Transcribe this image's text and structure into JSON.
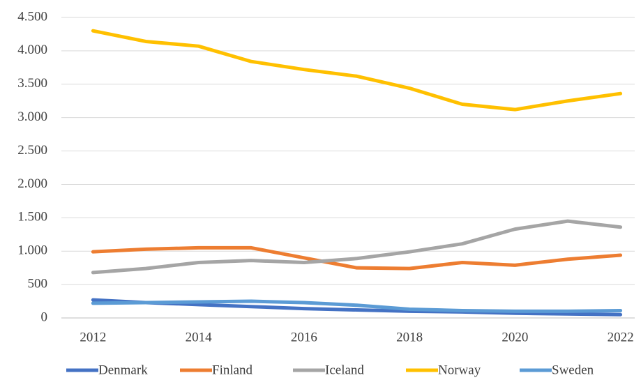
{
  "chart_data": {
    "type": "line",
    "x": [
      2012,
      2013,
      2014,
      2015,
      2016,
      2017,
      2018,
      2019,
      2020,
      2021,
      2022
    ],
    "series": [
      {
        "name": "Denmark",
        "color": "#4472c4",
        "values": [
          270,
          230,
          200,
          170,
          140,
          120,
          100,
          90,
          70,
          60,
          50
        ]
      },
      {
        "name": "Finland",
        "color": "#ed7d31",
        "values": [
          990,
          1030,
          1050,
          1050,
          900,
          750,
          740,
          830,
          790,
          880,
          940
        ]
      },
      {
        "name": "Iceland",
        "color": "#a5a5a5",
        "values": [
          680,
          740,
          830,
          860,
          830,
          890,
          990,
          1110,
          1330,
          1450,
          1360
        ]
      },
      {
        "name": "Norway",
        "color": "#ffc000",
        "values": [
          4300,
          4140,
          4070,
          3840,
          3720,
          3620,
          3440,
          3200,
          3120,
          3250,
          3360
        ]
      },
      {
        "name": "Sweden",
        "color": "#5b9bd5",
        "values": [
          220,
          230,
          240,
          250,
          230,
          190,
          130,
          110,
          100,
          100,
          110
        ]
      }
    ],
    "xlim": [
      2011.4,
      2022.27
    ],
    "xticks": [
      2012,
      2014,
      2016,
      2018,
      2020,
      2022
    ],
    "ylim": [
      0,
      4500
    ],
    "yticks": [
      0,
      500,
      {
        "value": 1000,
        "label": "1.000"
      },
      {
        "value": 1500,
        "label": "1.500"
      },
      {
        "value": 2000,
        "label": "2.000"
      },
      {
        "value": 2500,
        "label": "2.500"
      },
      {
        "value": 3000,
        "label": "3.000"
      },
      {
        "value": 3500,
        "label": "3.500"
      },
      {
        "value": 4000,
        "label": "4.000"
      },
      {
        "value": 4500,
        "label": "4.500"
      }
    ],
    "grid": true,
    "legend": "bottom"
  }
}
